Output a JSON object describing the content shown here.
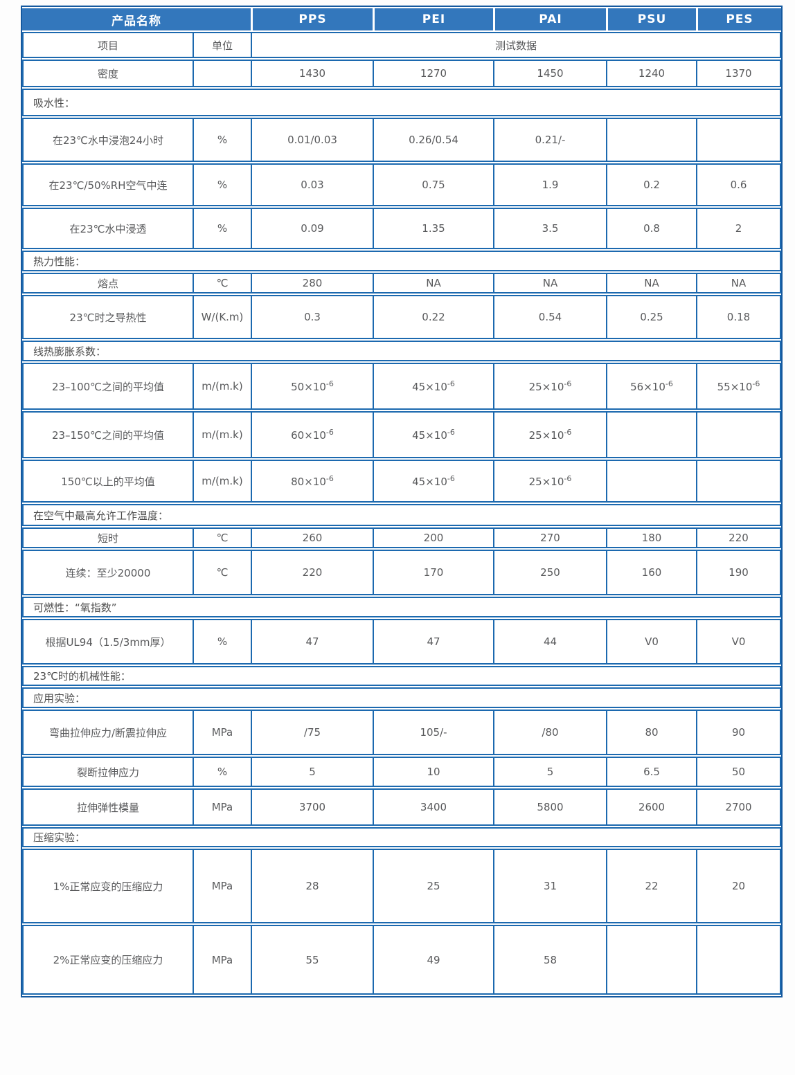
{
  "colors": {
    "header_bg": "#3377bc",
    "border": "#1c69af",
    "outer_border": "#15599f",
    "text": "#58595b",
    "header_text": "#ffffff"
  },
  "header": {
    "product_label": "产品名称",
    "products": [
      "PPS",
      "PEI",
      "PAI",
      "PSU",
      "PES"
    ]
  },
  "subheader": {
    "item_label": "项目",
    "unit_label": "单位",
    "data_label": "测试数据"
  },
  "rows": [
    {
      "type": "data",
      "label": "密度",
      "unit": "",
      "values": [
        "1430",
        "1270",
        "1450",
        "1240",
        "1370"
      ]
    },
    {
      "type": "section",
      "label": "吸水性："
    },
    {
      "type": "data",
      "label": "在23℃水中浸泡24小时",
      "unit": "%",
      "values": [
        "0.01/0.03",
        "0.26/0.54",
        "0.21/-",
        "",
        ""
      ]
    },
    {
      "type": "data",
      "label": "在23℃/50%RH空气中连",
      "unit": "%",
      "values": [
        "0.03",
        "0.75",
        "1.9",
        "0.2",
        "0.6"
      ]
    },
    {
      "type": "data",
      "label": "在23℃水中浸透",
      "unit": "%",
      "values": [
        "0.09",
        "1.35",
        "3.5",
        "0.8",
        "2"
      ]
    },
    {
      "type": "section",
      "label": "热力性能："
    },
    {
      "type": "data",
      "label": "熔点",
      "unit": "℃",
      "values": [
        "280",
        "NA",
        "NA",
        "NA",
        "NA"
      ]
    },
    {
      "type": "data",
      "label": "23℃时之导热性",
      "unit": "W/(K.m)",
      "values": [
        "0.3",
        "0.22",
        "0.54",
        "0.25",
        "0.18"
      ]
    },
    {
      "type": "section",
      "label": "线热膨胀系数："
    },
    {
      "type": "data",
      "label": "23–100℃之间的平均值",
      "unit": "m/(m.k)",
      "values": [
        "50×10^-6",
        "45×10^-6",
        "25×10^-6",
        "56×10^-6",
        "55×10^-6"
      ]
    },
    {
      "type": "data",
      "label": "23–150℃之间的平均值",
      "unit": "m/(m.k)",
      "values": [
        "60×10^-6",
        "45×10^-6",
        "25×10^-6",
        "",
        ""
      ]
    },
    {
      "type": "data",
      "label": "150℃以上的平均值",
      "unit": "m/(m.k)",
      "values": [
        "80×10^-6",
        "45×10^-6",
        "25×10^-6",
        "",
        ""
      ]
    },
    {
      "type": "section",
      "label": "在空气中最高允许工作温度："
    },
    {
      "type": "data",
      "label": "短时",
      "unit": "℃",
      "values": [
        "260",
        "200",
        "270",
        "180",
        "220"
      ]
    },
    {
      "type": "data",
      "label": "连续：至少20000",
      "unit": "℃",
      "values": [
        "220",
        "170",
        "250",
        "160",
        "190"
      ]
    },
    {
      "type": "section",
      "label": "可燃性：“氧指数”"
    },
    {
      "type": "data",
      "label": "根据UL94（1.5/3mm厚）",
      "unit": "%",
      "values": [
        "47",
        "47",
        "44",
        "V0",
        "V0"
      ]
    },
    {
      "type": "section",
      "label": "23℃时的机械性能："
    },
    {
      "type": "section",
      "label": "应用实验："
    },
    {
      "type": "data",
      "label": "弯曲拉伸应力/断震拉伸应",
      "unit": "MPa",
      "values": [
        "/75",
        "105/-",
        "/80",
        "80",
        "90"
      ]
    },
    {
      "type": "data",
      "label": "裂断拉伸应力",
      "unit": "%",
      "values": [
        "5",
        "10",
        "5",
        "6.5",
        "50"
      ]
    },
    {
      "type": "data",
      "label": "拉伸弹性模量",
      "unit": "MPa",
      "values": [
        "3700",
        "3400",
        "5800",
        "2600",
        "2700"
      ]
    },
    {
      "type": "section",
      "label": "压缩实验："
    },
    {
      "type": "data",
      "label": "1%正常应变的压缩应力",
      "unit": "MPa",
      "values": [
        "28",
        "25",
        "31",
        "22",
        "20"
      ]
    },
    {
      "type": "data",
      "label": "2%正常应变的压缩应力",
      "unit": "MPa",
      "values": [
        "55",
        "49",
        "58",
        "",
        ""
      ]
    }
  ]
}
